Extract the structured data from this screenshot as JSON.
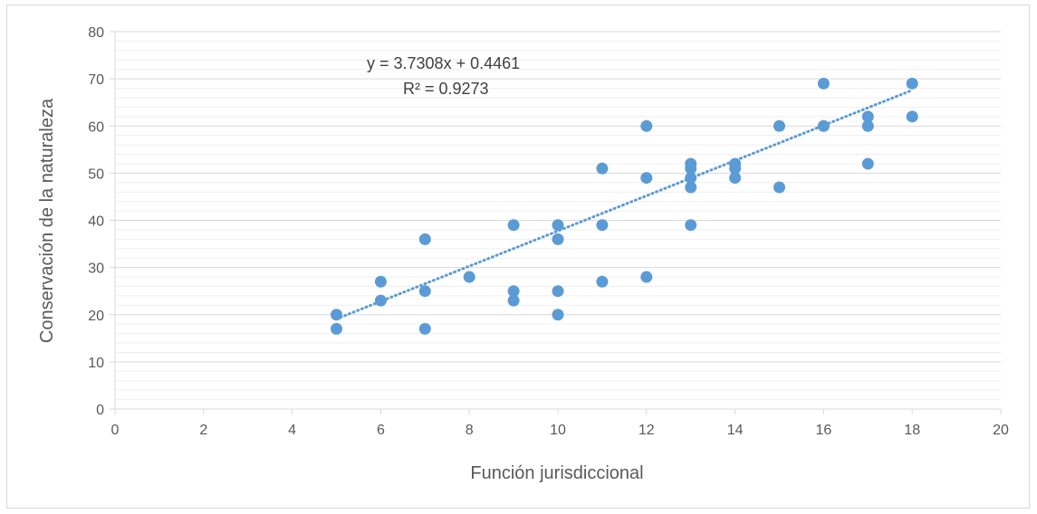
{
  "chart_data": {
    "type": "scatter",
    "title": "",
    "xlabel": "Función jurisdiccional",
    "ylabel": "Conservación de la naturaleza",
    "xlim": [
      0,
      20
    ],
    "ylim": [
      0,
      80
    ],
    "x_ticks": [
      0,
      2,
      4,
      6,
      8,
      10,
      12,
      14,
      16,
      18,
      20
    ],
    "y_ticks": [
      0,
      10,
      20,
      30,
      40,
      50,
      60,
      70,
      80
    ],
    "grid": true,
    "legend": "none",
    "marker_color": "#5b9bd5",
    "trendline": {
      "type": "linear",
      "style": "dotted",
      "slope": 3.7308,
      "intercept": 0.4461,
      "x_range": [
        5,
        18
      ],
      "equation_label": "y = 3.7308x + 0.4461",
      "r2_label": "R² = 0.9273"
    },
    "points": [
      {
        "x": 5,
        "y": 20
      },
      {
        "x": 5,
        "y": 17
      },
      {
        "x": 6,
        "y": 27
      },
      {
        "x": 6,
        "y": 23
      },
      {
        "x": 7,
        "y": 36
      },
      {
        "x": 7,
        "y": 25
      },
      {
        "x": 7,
        "y": 17
      },
      {
        "x": 8,
        "y": 28
      },
      {
        "x": 9,
        "y": 39
      },
      {
        "x": 9,
        "y": 25
      },
      {
        "x": 9,
        "y": 23
      },
      {
        "x": 10,
        "y": 39
      },
      {
        "x": 10,
        "y": 36
      },
      {
        "x": 10,
        "y": 25
      },
      {
        "x": 10,
        "y": 20
      },
      {
        "x": 11,
        "y": 51
      },
      {
        "x": 11,
        "y": 39
      },
      {
        "x": 11,
        "y": 27
      },
      {
        "x": 12,
        "y": 60
      },
      {
        "x": 12,
        "y": 49
      },
      {
        "x": 12,
        "y": 28
      },
      {
        "x": 13,
        "y": 52
      },
      {
        "x": 13,
        "y": 51
      },
      {
        "x": 13,
        "y": 49
      },
      {
        "x": 13,
        "y": 47
      },
      {
        "x": 13,
        "y": 39
      },
      {
        "x": 14,
        "y": 52
      },
      {
        "x": 14,
        "y": 51
      },
      {
        "x": 14,
        "y": 49
      },
      {
        "x": 15,
        "y": 60
      },
      {
        "x": 15,
        "y": 47
      },
      {
        "x": 16,
        "y": 69
      },
      {
        "x": 16,
        "y": 60
      },
      {
        "x": 17,
        "y": 62
      },
      {
        "x": 17,
        "y": 60
      },
      {
        "x": 17,
        "y": 52
      },
      {
        "x": 18,
        "y": 69
      },
      {
        "x": 18,
        "y": 62
      }
    ],
    "colors": {
      "gridline": "#d9d9d9",
      "minor_gridline": "#efefef",
      "axis_text": "#595959",
      "trendline": "#5b9bd5"
    }
  }
}
